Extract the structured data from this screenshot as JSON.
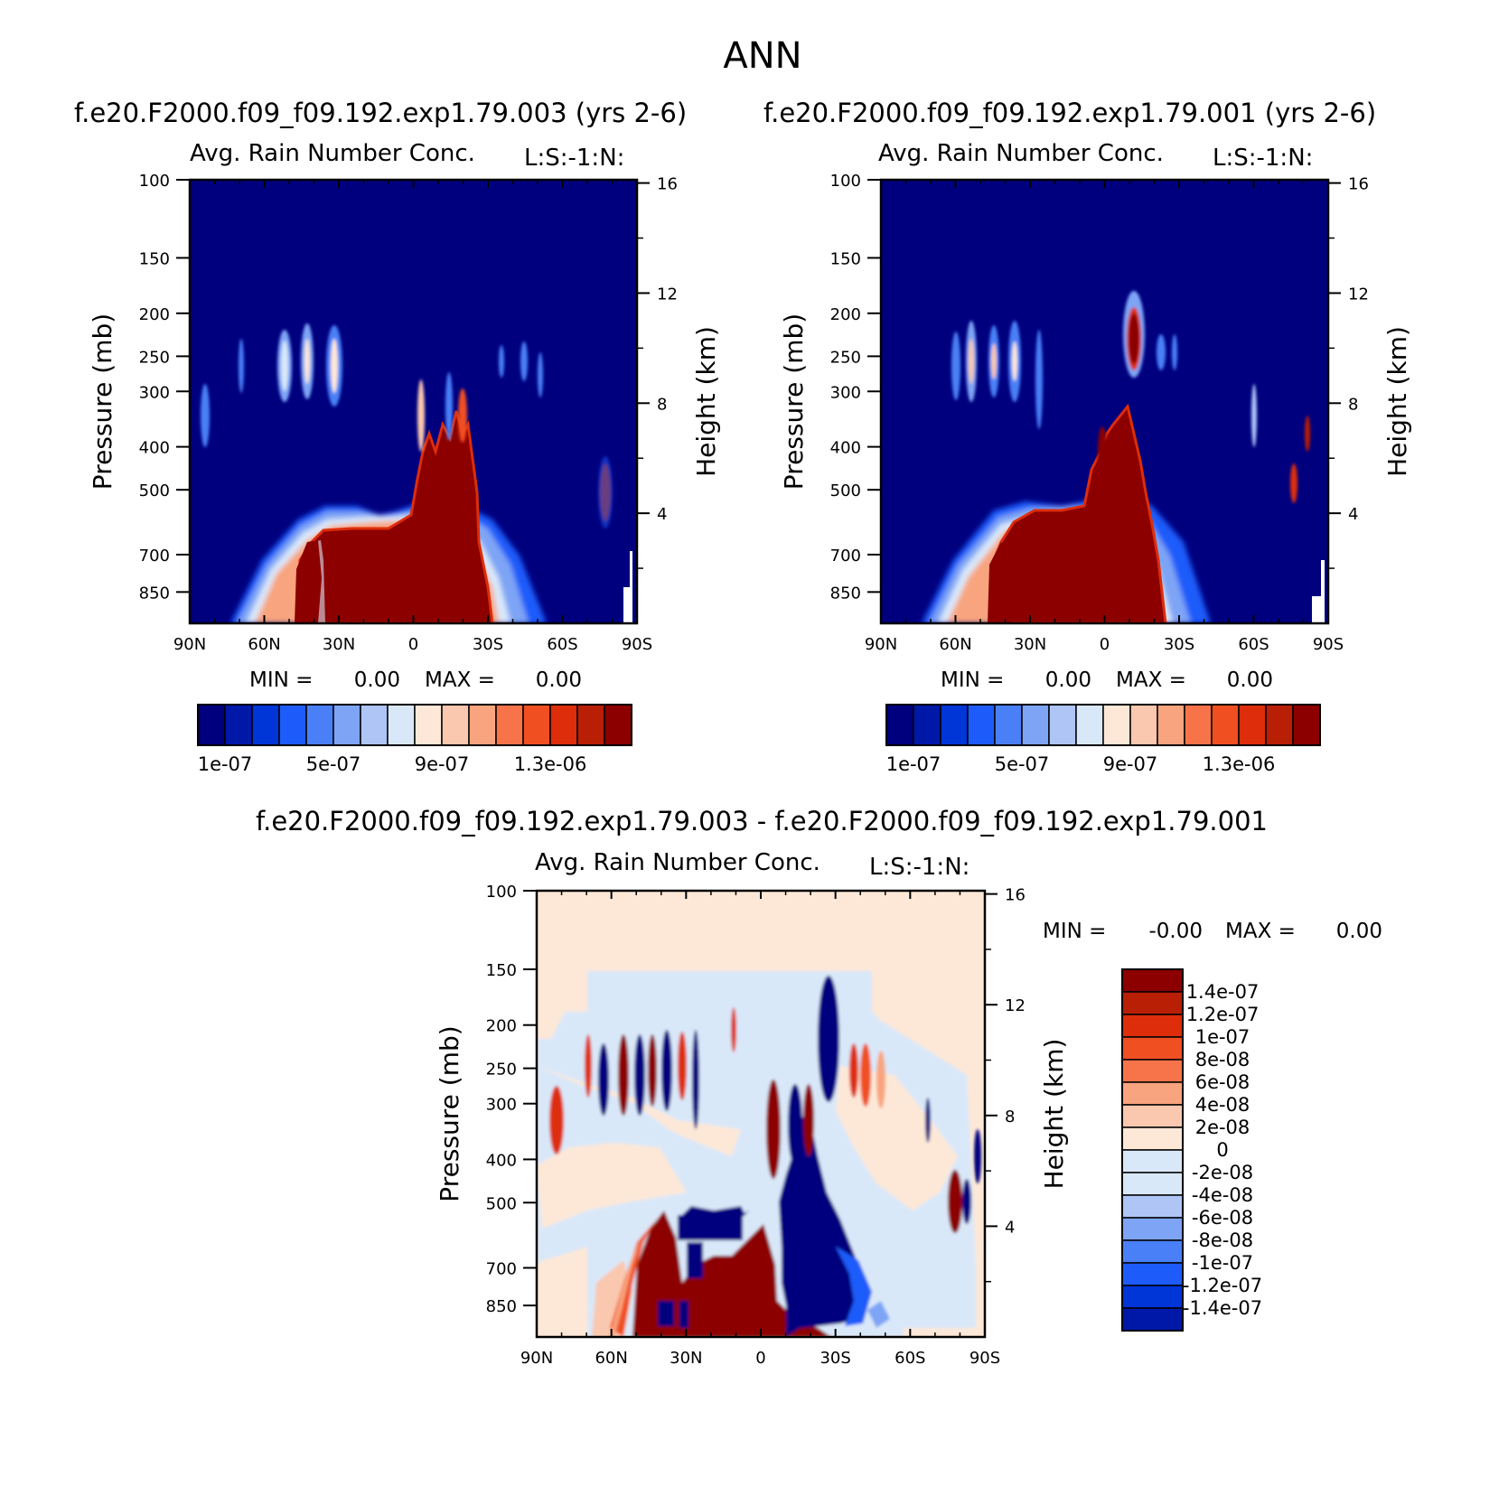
{
  "figure": {
    "season": "ANN"
  },
  "colors": {
    "blues": [
      "#00007f",
      "#0018a8",
      "#0035d8",
      "#1d5cfa",
      "#4a80f7",
      "#7ea4f5",
      "#aec5f6",
      "#d9e8f9"
    ],
    "reds": [
      "#fde8d8",
      "#fac8ae",
      "#f8a47e",
      "#f7744a",
      "#f04f22",
      "#dd2d0a",
      "#b81f05",
      "#8c0000"
    ],
    "white": "#ffffff",
    "diff_bg": "#fde8d8"
  },
  "chart_data": [
    {
      "type": "heatmap",
      "panel": "top-left",
      "case_title": "f.e20.F2000.f09_f09.192.exp1.79.003 (yrs 2-6)",
      "var_title": "Avg. Rain Number Conc.",
      "right_title": "L:S:-1:N:",
      "ylabel": "Pressure (mb)",
      "ylabel2": "Height (km)",
      "x_ticks": [
        "90N",
        "60N",
        "30N",
        "0",
        "30S",
        "60S",
        "90S"
      ],
      "x_values": [
        90,
        60,
        30,
        0,
        -30,
        -60,
        -90
      ],
      "y_ticks": [
        "100",
        "150",
        "200",
        "250",
        "300",
        "400",
        "500",
        "700",
        "850"
      ],
      "y_values": [
        100,
        150,
        200,
        250,
        300,
        400,
        500,
        700,
        850
      ],
      "y2_ticks": [
        "16",
        "12",
        "8",
        "4"
      ],
      "y2_values": [
        16,
        12,
        8,
        4
      ],
      "ylim": [
        100,
        1000
      ],
      "y_scale": "log",
      "min_label": "MIN =",
      "min_value": "0.00",
      "max_label": "MAX =",
      "max_value": "0.00",
      "colorbar_labels": [
        "1e-07",
        "5e-07",
        "9e-07",
        "1.3e-06"
      ],
      "colorbar_levels": [
        1e-07,
        2e-07,
        3e-07,
        4e-07,
        5e-07,
        6e-07,
        7e-07,
        8e-07,
        9e-07,
        1e-06,
        1.1e-06,
        1.2e-06,
        1.3e-06,
        1.4e-06,
        1.5e-06
      ],
      "notes": "Rain number concentration maximal (>1.5e-06) in lower troposphere between ~45N and ~25S, below ~500 mb; weak upper level features near 45N and 30N at 200-300 mb."
    },
    {
      "type": "heatmap",
      "panel": "top-right",
      "case_title": "f.e20.F2000.f09_f09.192.exp1.79.001 (yrs 2-6)",
      "var_title": "Avg. Rain Number Conc.",
      "right_title": "L:S:-1:N:",
      "ylabel": "Pressure (mb)",
      "ylabel2": "Height (km)",
      "x_ticks": [
        "90N",
        "60N",
        "30N",
        "0",
        "30S",
        "60S",
        "90S"
      ],
      "x_values": [
        90,
        60,
        30,
        0,
        -30,
        -60,
        -90
      ],
      "y_ticks": [
        "100",
        "150",
        "200",
        "250",
        "300",
        "400",
        "500",
        "700",
        "850"
      ],
      "y_values": [
        100,
        150,
        200,
        250,
        300,
        400,
        500,
        700,
        850
      ],
      "y2_ticks": [
        "16",
        "12",
        "8",
        "4"
      ],
      "y2_values": [
        16,
        12,
        8,
        4
      ],
      "ylim": [
        100,
        1000
      ],
      "y_scale": "log",
      "min_label": "MIN =",
      "min_value": "0.00",
      "max_label": "MAX =",
      "max_value": "0.00",
      "colorbar_labels": [
        "1e-07",
        "5e-07",
        "9e-07",
        "1.3e-06"
      ],
      "colorbar_levels": [
        1e-07,
        2e-07,
        3e-07,
        4e-07,
        5e-07,
        6e-07,
        7e-07,
        8e-07,
        9e-07,
        1e-06,
        1.1e-06,
        1.2e-06,
        1.3e-06,
        1.4e-06,
        1.5e-06
      ]
    },
    {
      "type": "heatmap",
      "panel": "bottom-difference",
      "case_title": "f.e20.F2000.f09_f09.192.exp1.79.003 - f.e20.F2000.f09_f09.192.exp1.79.001",
      "var_title": "Avg. Rain Number Conc.",
      "right_title": "L:S:-1:N:",
      "ylabel": "Pressure (mb)",
      "ylabel2": "Height (km)",
      "x_ticks": [
        "90N",
        "60N",
        "30N",
        "0",
        "30S",
        "60S",
        "90S"
      ],
      "x_values": [
        90,
        60,
        30,
        0,
        -30,
        -60,
        -90
      ],
      "y_ticks": [
        "100",
        "150",
        "200",
        "250",
        "300",
        "400",
        "500",
        "700",
        "850"
      ],
      "y_values": [
        100,
        150,
        200,
        250,
        300,
        400,
        500,
        700,
        850
      ],
      "y2_ticks": [
        "16",
        "12",
        "8",
        "4"
      ],
      "y2_values": [
        16,
        12,
        8,
        4
      ],
      "ylim": [
        100,
        1000
      ],
      "y_scale": "log",
      "min_label": "MIN =",
      "min_value": "-0.00",
      "max_label": "MAX =",
      "max_value": "0.00",
      "colorbar_labels": [
        "1.4e-07",
        "1.2e-07",
        "1e-07",
        "8e-08",
        "6e-08",
        "4e-08",
        "2e-08",
        "0",
        "-2e-08",
        "-4e-08",
        "-6e-08",
        "-8e-08",
        "-1e-07",
        "-1.2e-07",
        "-1.4e-07"
      ],
      "colorbar_levels": [
        1.4e-07,
        1.2e-07,
        1e-07,
        8e-08,
        6e-08,
        4e-08,
        2e-08,
        0,
        -2e-08,
        -4e-08,
        -6e-08,
        -8e-08,
        -1e-07,
        -1.2e-07,
        -1.4e-07
      ]
    }
  ]
}
